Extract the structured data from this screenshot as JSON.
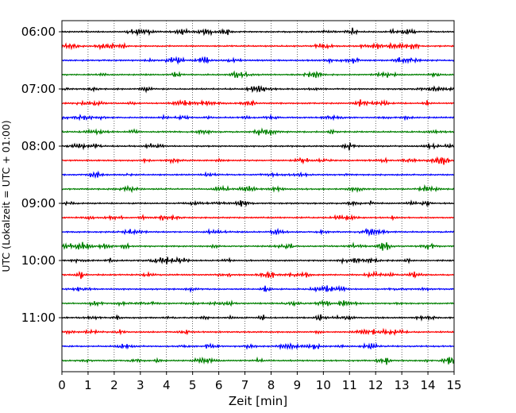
{
  "chart_data": {
    "type": "line",
    "subtype": "helicorder",
    "xlabel": "Zeit  [min]",
    "ylabel": "UTC (Lokalzeit = UTC + 01:00)",
    "xlim": [
      0,
      15
    ],
    "x_ticks": [
      0,
      1,
      2,
      3,
      4,
      5,
      6,
      7,
      8,
      9,
      10,
      11,
      12,
      13,
      14,
      15
    ],
    "y_tick_labels": [
      "06:00",
      "07:00",
      "08:00",
      "09:00",
      "10:00",
      "11:00"
    ],
    "minutes_per_line": 15,
    "start_time": "06:00",
    "end_time": "12:00",
    "trace_count": 24,
    "trace_colors": [
      "#000000",
      "#ff0000",
      "#0000ff",
      "#008000"
    ],
    "grid": "vertical dotted lines at each minute"
  }
}
